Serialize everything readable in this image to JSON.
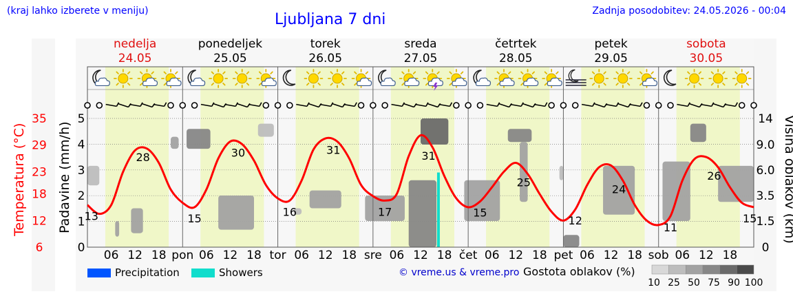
{
  "header": {
    "menu_hint": "(kraj lahko izberete v meniju)",
    "title": "Ljubljana 7 dni",
    "updated": "Zadnja posodobitev: 24.05.2026 - 00:04"
  },
  "colors": {
    "weekend": "#e01010",
    "weekday": "#000000",
    "temperature_line": "#ff0000",
    "daytime_band": "#f0f7c8",
    "precipitation": "#0055ff",
    "showers": "#11ddcc"
  },
  "days": [
    {
      "name": "nedelja",
      "date": "24.05",
      "weekend": true,
      "icons": [
        "moon-cloud-icon",
        "sun-icon",
        "sun-cloud-icon",
        "sun-cloud-icon"
      ]
    },
    {
      "name": "ponedeljek",
      "date": "25.05",
      "weekend": false,
      "icons": [
        "moon-cloud-icon",
        "sun-icon",
        "sun-icon",
        "sun-cloud-icon"
      ]
    },
    {
      "name": "torek",
      "date": "26.05",
      "weekend": false,
      "icons": [
        "moon-icon",
        "sun-icon",
        "sun-icon",
        "sun-cloud-icon"
      ]
    },
    {
      "name": "sreda",
      "date": "27.05",
      "weekend": false,
      "icons": [
        "moon-cloud-icon",
        "sun-cloud-icon",
        "thunder-icon",
        "sun-cloud-icon"
      ]
    },
    {
      "name": "četrtek",
      "date": "28.05",
      "weekend": false,
      "icons": [
        "moon-cloud-icon",
        "sun-cloud-icon",
        "sun-cloud-icon",
        "sun-cloud-icon"
      ]
    },
    {
      "name": "petek",
      "date": "29.05",
      "weekend": false,
      "icons": [
        "fog-icon",
        "sun-icon",
        "sun-icon",
        "sun-cloud-icon"
      ]
    },
    {
      "name": "sobota",
      "date": "30.05",
      "weekend": true,
      "icons": [
        "moon-icon",
        "sun-icon",
        "sun-icon",
        "sun-icon"
      ]
    }
  ],
  "chart_data": {
    "type": "line",
    "title": "Ljubljana 7 dni",
    "x_tick_labels": [
      "06",
      "12",
      "18",
      "pon",
      "06",
      "12",
      "18",
      "tor",
      "06",
      "12",
      "18",
      "sre",
      "06",
      "12",
      "18",
      "čet",
      "06",
      "12",
      "18",
      "pet",
      "06",
      "12",
      "18",
      "sob",
      "06",
      "12",
      "18"
    ],
    "y_left_temperature": {
      "label": "Temperatura (°C)",
      "ticks": [
        6,
        12,
        18,
        23,
        29,
        35
      ],
      "range": [
        6,
        35
      ]
    },
    "y_left_precipitation": {
      "label": "Padavine (mm/h)",
      "ticks": [
        0,
        1,
        2,
        3,
        4,
        5
      ],
      "range": [
        0,
        5
      ]
    },
    "y_right_cloud_height": {
      "label": "Višina oblakov (km)",
      "ticks": [
        "0",
        "1.5",
        "3.5",
        "6.0",
        "9.0",
        "14"
      ]
    },
    "series": [
      {
        "name": "Temperatura",
        "hours": [
          0,
          3,
          6,
          9,
          12,
          15,
          18,
          21,
          24,
          27,
          30,
          33,
          36,
          39,
          42,
          45,
          48,
          51,
          54,
          57,
          60,
          63,
          66,
          69,
          72,
          75,
          78,
          81,
          84,
          87,
          90,
          93,
          96,
          99,
          102,
          105,
          108,
          111,
          114,
          117,
          120,
          123,
          126,
          129,
          132,
          135,
          138,
          141,
          144,
          147,
          150,
          153,
          156,
          159,
          162,
          165,
          168
        ],
        "values": [
          15.5,
          13.5,
          15.5,
          23,
          27.8,
          28.2,
          25,
          19,
          16,
          15,
          19,
          26,
          29.8,
          29.2,
          25.5,
          20,
          17,
          16.5,
          21,
          28,
          30.5,
          29.8,
          26,
          20,
          17.5,
          16.5,
          18,
          26.5,
          31.2,
          28.5,
          22,
          17,
          15,
          16.3,
          19.5,
          23,
          25,
          22.5,
          18,
          14,
          12,
          14.5,
          20,
          24,
          24.4,
          21,
          15.5,
          12,
          11,
          13,
          21,
          25.8,
          26.3,
          24,
          19.5,
          16,
          15
        ],
        "labels": [
          {
            "hour": 1,
            "text": "13"
          },
          {
            "hour": 14,
            "text": "28"
          },
          {
            "hour": 27,
            "text": "15"
          },
          {
            "hour": 38,
            "text": "30"
          },
          {
            "hour": 51,
            "text": "16"
          },
          {
            "hour": 62,
            "text": "31"
          },
          {
            "hour": 75,
            "text": "17"
          },
          {
            "hour": 86,
            "text": "31"
          },
          {
            "hour": 99,
            "text": "15"
          },
          {
            "hour": 110,
            "text": "25"
          },
          {
            "hour": 123,
            "text": "12"
          },
          {
            "hour": 134,
            "text": "24"
          },
          {
            "hour": 147,
            "text": "11"
          },
          {
            "hour": 158,
            "text": "26"
          },
          {
            "hour": 167,
            "text": "15"
          }
        ]
      },
      {
        "name": "Showers",
        "values": [
          {
            "hour": 88.5,
            "mm_per_h": 2.9
          }
        ]
      }
    ],
    "cloud_cover": [
      {
        "hour_start": 0,
        "hour_end": 3,
        "bottom_km": 4.5,
        "top_km": 6.5,
        "cover": 25
      },
      {
        "hour_start": 7,
        "hour_end": 8,
        "bottom_km": 0.6,
        "top_km": 1.5,
        "cover": 50
      },
      {
        "hour_start": 11,
        "hour_end": 14,
        "bottom_km": 0.8,
        "top_km": 2.5,
        "cover": 50
      },
      {
        "hour_start": 21,
        "hour_end": 23,
        "bottom_km": 8.5,
        "top_km": 10.5,
        "cover": 50
      },
      {
        "hour_start": 25,
        "hour_end": 31,
        "bottom_km": 8.5,
        "top_km": 12,
        "cover": 75
      },
      {
        "hour_start": 33,
        "hour_end": 42,
        "bottom_km": 1,
        "top_km": 3.5,
        "cover": 50
      },
      {
        "hour_start": 43,
        "hour_end": 47,
        "bottom_km": 10.5,
        "top_km": 13,
        "cover": 25
      },
      {
        "hour_start": 52,
        "hour_end": 54,
        "bottom_km": 2,
        "top_km": 2.5,
        "cover": 25
      },
      {
        "hour_start": 56,
        "hour_end": 64,
        "bottom_km": 2.5,
        "top_km": 4,
        "cover": 50
      },
      {
        "hour_start": 70,
        "hour_end": 80,
        "bottom_km": 1.5,
        "top_km": 3.5,
        "cover": 50
      },
      {
        "hour_start": 81,
        "hour_end": 88,
        "bottom_km": 0,
        "top_km": 5,
        "cover": 75
      },
      {
        "hour_start": 84,
        "hour_end": 91,
        "bottom_km": 9,
        "top_km": 14,
        "cover": 90
      },
      {
        "hour_start": 95,
        "hour_end": 104,
        "bottom_km": 1.5,
        "top_km": 5,
        "cover": 50
      },
      {
        "hour_start": 106,
        "hour_end": 112,
        "bottom_km": 9.5,
        "top_km": 12,
        "cover": 75
      },
      {
        "hour_start": 109,
        "hour_end": 111,
        "bottom_km": 3,
        "top_km": 9.5,
        "cover": 50
      },
      {
        "hour_start": 119,
        "hour_end": 120,
        "bottom_km": 5,
        "top_km": 6.5,
        "cover": 25
      },
      {
        "hour_start": 120,
        "hour_end": 124,
        "bottom_km": 0,
        "top_km": 0.7,
        "cover": 75
      },
      {
        "hour_start": 130,
        "hour_end": 138,
        "bottom_km": 2,
        "top_km": 6.5,
        "cover": 50
      },
      {
        "hour_start": 145,
        "hour_end": 152,
        "bottom_km": 1.5,
        "top_km": 7,
        "cover": 50
      },
      {
        "hour_start": 152,
        "hour_end": 156,
        "bottom_km": 9.5,
        "top_km": 13,
        "cover": 75
      },
      {
        "hour_start": 159,
        "hour_end": 168,
        "bottom_km": 3,
        "top_km": 6.5,
        "cover": 50
      }
    ]
  },
  "legend": {
    "precipitation": "Precipitation",
    "showers": "Showers",
    "copyright": "© vreme.us & vreme.pro",
    "cloud_density_title": "Gostota oblakov (%)",
    "cloud_density_ticks": [
      "10",
      "25",
      "50",
      "75",
      "90",
      "100"
    ],
    "cloud_density_colors": [
      "#d8d8d8",
      "#bdbdbd",
      "#a2a2a2",
      "#878787",
      "#6a6a6a",
      "#4a4a4a"
    ]
  }
}
